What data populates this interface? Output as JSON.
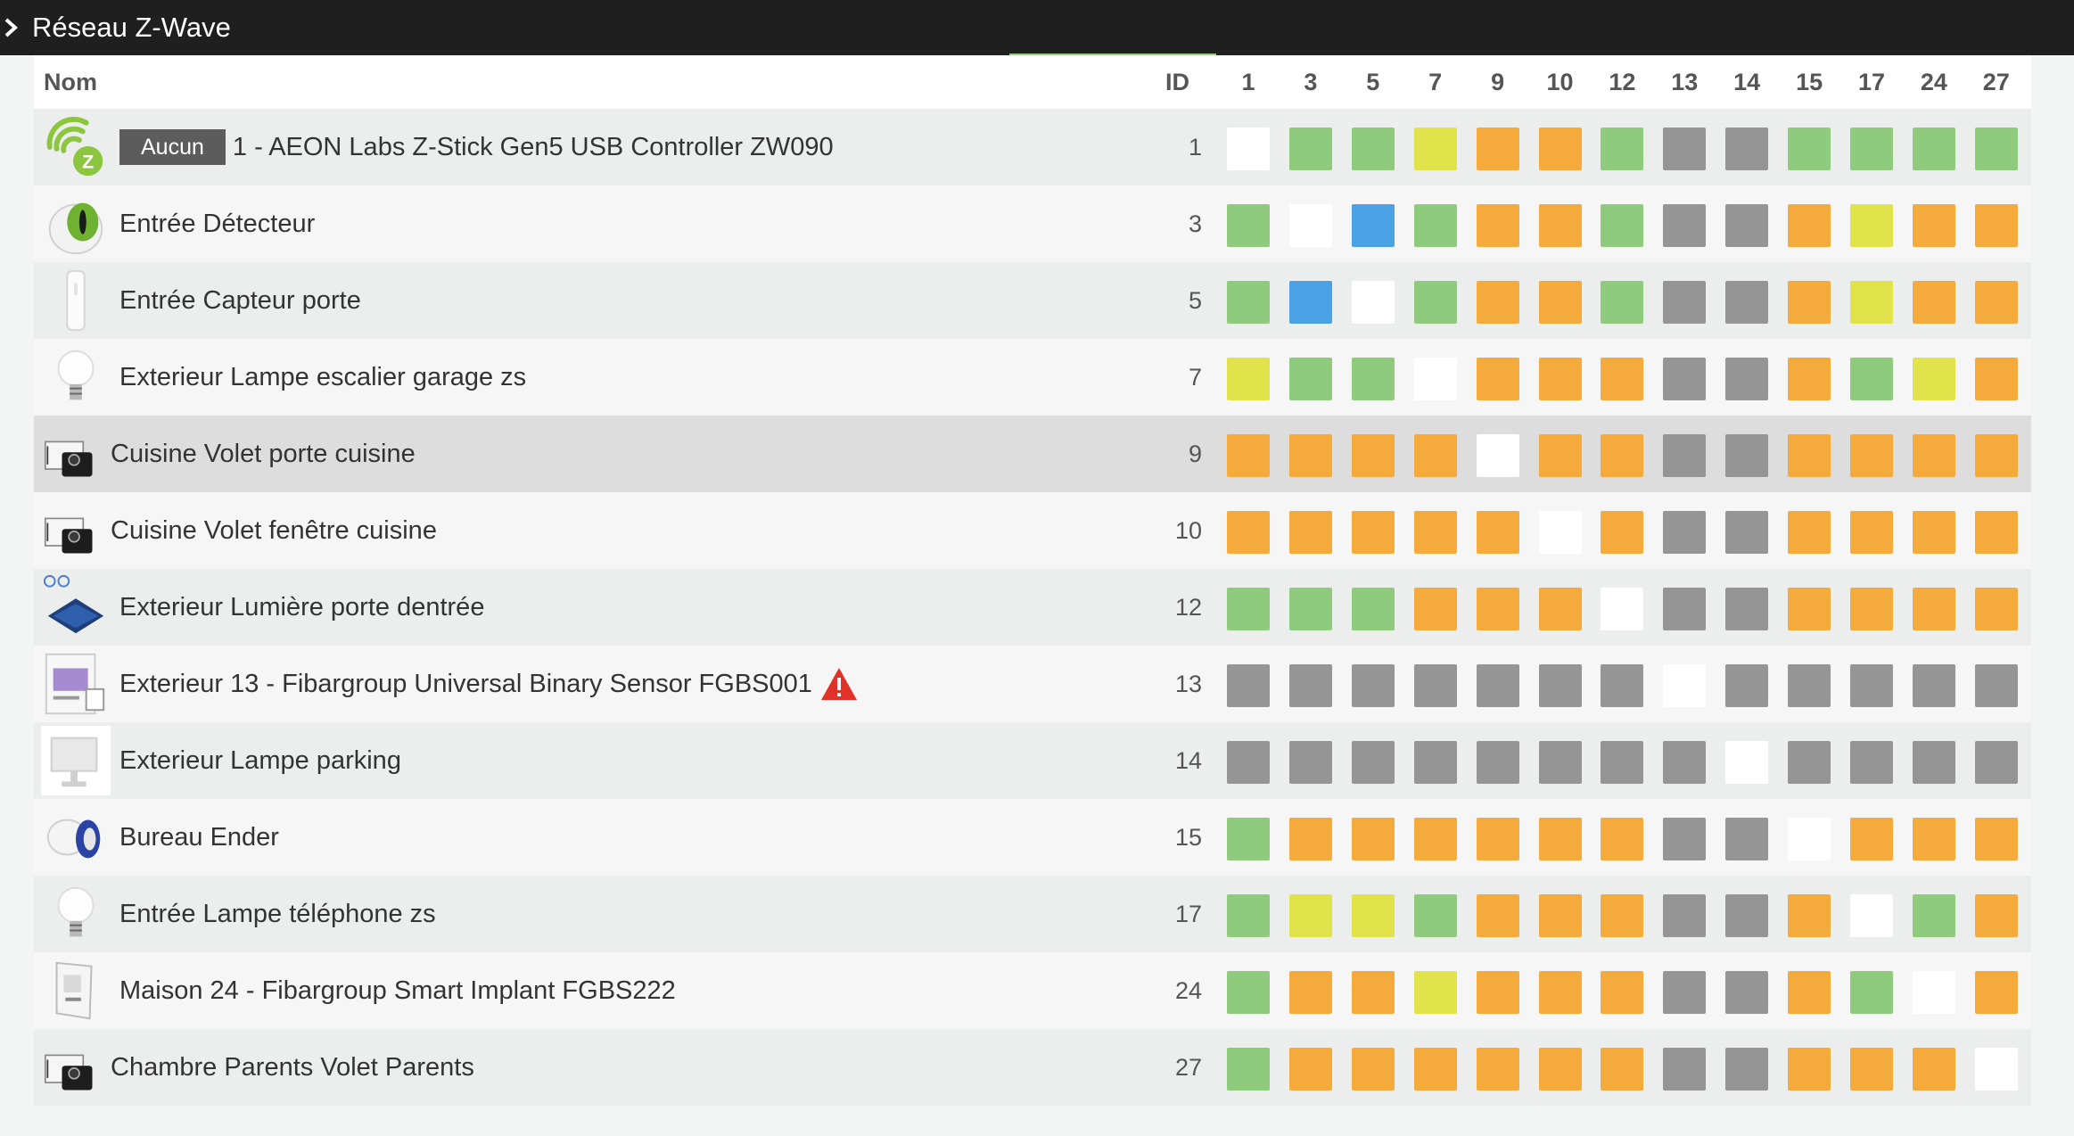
{
  "title": "Réseau Z-Wave",
  "columns": {
    "name": "Nom",
    "id": "ID"
  },
  "nodes": [
    "1",
    "3",
    "5",
    "7",
    "9",
    "10",
    "12",
    "13",
    "14",
    "15",
    "17",
    "24",
    "27"
  ],
  "colors": {
    "G": "#8ecb7d",
    "O": "#f4ab3c",
    "Y": "#e1e34a",
    "D": "#959595",
    "W": "#ffffff",
    "B": "#4aa1e4"
  },
  "rows": [
    {
      "icon": "zwave-logo-icon",
      "badge": "Aucun",
      "name": "1 - AEON Labs Z-Stick Gen5 USB Controller ZW090",
      "id": "1",
      "cells": [
        "W",
        "G",
        "G",
        "Y",
        "O",
        "O",
        "G",
        "D",
        "D",
        "G",
        "G",
        "G",
        "G"
      ]
    },
    {
      "icon": "motion-sensor-icon",
      "name": "Entrée Détecteur",
      "id": "3",
      "cells": [
        "G",
        "W",
        "B",
        "G",
        "O",
        "O",
        "G",
        "D",
        "D",
        "O",
        "Y",
        "O",
        "O"
      ]
    },
    {
      "icon": "door-sensor-icon",
      "name": "Entrée Capteur porte",
      "id": "5",
      "cells": [
        "G",
        "B",
        "W",
        "G",
        "O",
        "O",
        "G",
        "D",
        "D",
        "O",
        "Y",
        "O",
        "O"
      ]
    },
    {
      "icon": "light-bulb-icon",
      "name": "Exterieur Lampe escalier garage zs",
      "id": "7",
      "cells": [
        "Y",
        "G",
        "G",
        "W",
        "O",
        "O",
        "O",
        "D",
        "D",
        "O",
        "G",
        "Y",
        "O"
      ]
    },
    {
      "icon": "roller-shutter-module-icon",
      "name": "Cuisine Volet porte cuisine",
      "id": "9",
      "cells": [
        "O",
        "O",
        "O",
        "O",
        "W",
        "O",
        "O",
        "D",
        "D",
        "O",
        "O",
        "O",
        "O"
      ]
    },
    {
      "icon": "roller-shutter-module-icon",
      "name": "Cuisine Volet fenêtre cuisine",
      "id": "10",
      "cells": [
        "O",
        "O",
        "O",
        "O",
        "O",
        "W",
        "O",
        "D",
        "D",
        "O",
        "O",
        "O",
        "O"
      ]
    },
    {
      "icon": "switch-module-icon",
      "name": "Exterieur Lumière porte dentrée",
      "id": "12",
      "cells": [
        "G",
        "G",
        "G",
        "O",
        "O",
        "O",
        "W",
        "D",
        "D",
        "O",
        "O",
        "O",
        "O"
      ]
    },
    {
      "icon": "binary-sensor-box-icon",
      "name": "Exterieur 13 - Fibargroup Universal Binary Sensor FGBS001",
      "id": "13",
      "warning": true,
      "cells": [
        "D",
        "D",
        "D",
        "D",
        "D",
        "D",
        "D",
        "W",
        "D",
        "D",
        "D",
        "D",
        "D"
      ]
    },
    {
      "icon": "outdoor-lamp-icon",
      "name": "Exterieur Lampe parking",
      "id": "14",
      "cells": [
        "D",
        "D",
        "D",
        "D",
        "D",
        "D",
        "D",
        "D",
        "W",
        "D",
        "D",
        "D",
        "D"
      ]
    },
    {
      "icon": "wall-plug-icon",
      "name": "Bureau Ender",
      "id": "15",
      "cells": [
        "G",
        "O",
        "O",
        "O",
        "O",
        "O",
        "O",
        "D",
        "D",
        "W",
        "O",
        "O",
        "O"
      ]
    },
    {
      "icon": "light-bulb-icon",
      "name": "Entrée Lampe téléphone zs",
      "id": "17",
      "cells": [
        "G",
        "Y",
        "Y",
        "G",
        "O",
        "O",
        "O",
        "D",
        "D",
        "O",
        "W",
        "G",
        "O"
      ]
    },
    {
      "icon": "smart-implant-icon",
      "name": "Maison 24 - Fibargroup Smart Implant FGBS222",
      "id": "24",
      "cells": [
        "G",
        "O",
        "O",
        "Y",
        "O",
        "O",
        "O",
        "D",
        "D",
        "O",
        "G",
        "W",
        "O"
      ]
    },
    {
      "icon": "roller-shutter-module-icon",
      "name": "Chambre Parents Volet Parents",
      "id": "27",
      "cells": [
        "G",
        "O",
        "O",
        "O",
        "O",
        "O",
        "O",
        "D",
        "D",
        "O",
        "O",
        "O",
        "W"
      ]
    }
  ]
}
